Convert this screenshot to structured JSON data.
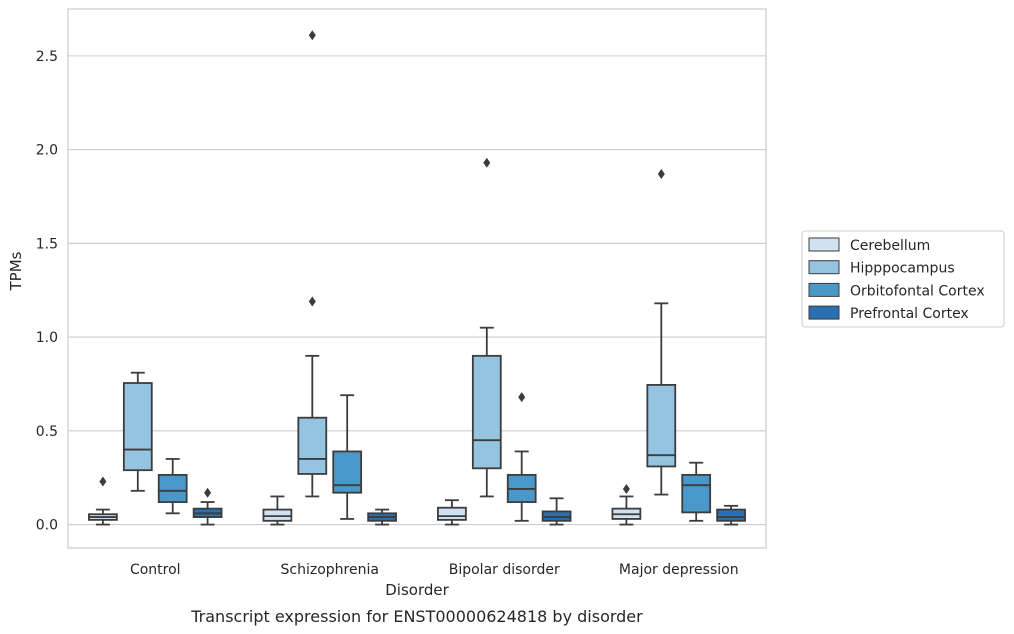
{
  "chart_data": {
    "type": "box",
    "title": "",
    "caption": "Transcript expression for ENST00000624818 by disorder",
    "xlabel": "Disorder",
    "ylabel": "TPMs",
    "categories": [
      "Control",
      "Schizophrenia",
      "Bipolar disorder",
      "Major depression"
    ],
    "ylim": [
      -0.125,
      2.75
    ],
    "yticks": [
      0.0,
      0.5,
      1.0,
      1.5,
      2.0,
      2.5
    ],
    "ytick_labels": [
      "0.0",
      "0.5",
      "1.0",
      "1.5",
      "2.0",
      "2.5"
    ],
    "grid": "horizontal",
    "legend_position": "right",
    "series": [
      {
        "name": "Cerebellum",
        "color": "#d0e1f2",
        "boxes": [
          {
            "whisker_low": 0.0,
            "q1": 0.025,
            "median": 0.04,
            "q3": 0.055,
            "whisker_high": 0.08,
            "outliers": [
              0.23
            ]
          },
          {
            "whisker_low": 0.0,
            "q1": 0.02,
            "median": 0.045,
            "q3": 0.08,
            "whisker_high": 0.15,
            "outliers": []
          },
          {
            "whisker_low": 0.0,
            "q1": 0.025,
            "median": 0.045,
            "q3": 0.09,
            "whisker_high": 0.13,
            "outliers": []
          },
          {
            "whisker_low": 0.0,
            "q1": 0.03,
            "median": 0.055,
            "q3": 0.085,
            "whisker_high": 0.15,
            "outliers": [
              0.19
            ]
          }
        ]
      },
      {
        "name": "Hipppocampus",
        "color": "#94c4df",
        "boxes": [
          {
            "whisker_low": 0.18,
            "q1": 0.29,
            "median": 0.4,
            "q3": 0.755,
            "whisker_high": 0.81,
            "outliers": []
          },
          {
            "whisker_low": 0.15,
            "q1": 0.27,
            "median": 0.35,
            "q3": 0.57,
            "whisker_high": 0.9,
            "outliers": [
              1.19,
              2.61
            ]
          },
          {
            "whisker_low": 0.15,
            "q1": 0.3,
            "median": 0.45,
            "q3": 0.9,
            "whisker_high": 1.05,
            "outliers": [
              1.93
            ]
          },
          {
            "whisker_low": 0.16,
            "q1": 0.31,
            "median": 0.37,
            "q3": 0.745,
            "whisker_high": 1.18,
            "outliers": [
              1.87
            ]
          }
        ]
      },
      {
        "name": "Orbitofontal Cortex",
        "color": "#4a98c9",
        "boxes": [
          {
            "whisker_low": 0.06,
            "q1": 0.12,
            "median": 0.18,
            "q3": 0.265,
            "whisker_high": 0.35,
            "outliers": []
          },
          {
            "whisker_low": 0.03,
            "q1": 0.17,
            "median": 0.21,
            "q3": 0.39,
            "whisker_high": 0.69,
            "outliers": []
          },
          {
            "whisker_low": 0.02,
            "q1": 0.12,
            "median": 0.19,
            "q3": 0.265,
            "whisker_high": 0.39,
            "outliers": [
              0.68
            ]
          },
          {
            "whisker_low": 0.02,
            "q1": 0.065,
            "median": 0.21,
            "q3": 0.265,
            "whisker_high": 0.33,
            "outliers": []
          }
        ]
      },
      {
        "name": "Prefrontal Cortex",
        "color": "#2a6fb0",
        "boxes": [
          {
            "whisker_low": 0.0,
            "q1": 0.04,
            "median": 0.06,
            "q3": 0.085,
            "whisker_high": 0.12,
            "outliers": [
              0.17
            ]
          },
          {
            "whisker_low": 0.0,
            "q1": 0.02,
            "median": 0.04,
            "q3": 0.06,
            "whisker_high": 0.08,
            "outliers": []
          },
          {
            "whisker_low": 0.0,
            "q1": 0.02,
            "median": 0.04,
            "q3": 0.07,
            "whisker_high": 0.14,
            "outliers": []
          },
          {
            "whisker_low": 0.0,
            "q1": 0.02,
            "median": 0.04,
            "q3": 0.08,
            "whisker_high": 0.1,
            "outliers": []
          }
        ]
      }
    ]
  }
}
